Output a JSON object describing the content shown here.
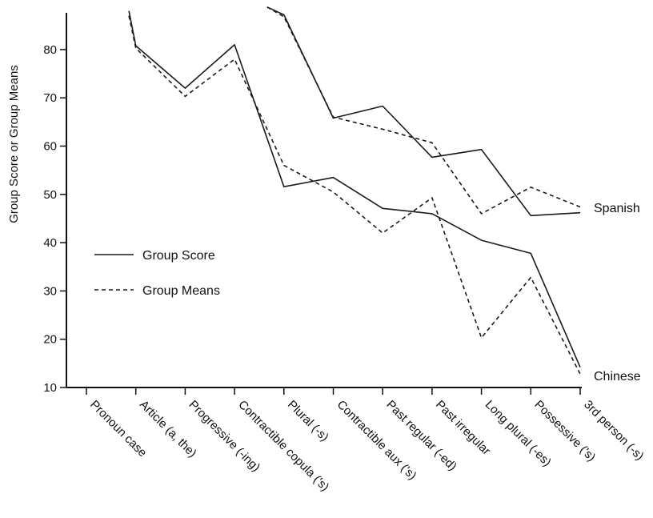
{
  "chart_data": {
    "type": "line",
    "ylabel": "Group Score or Group Means",
    "ylim": [
      10,
      88
    ],
    "yticks": [
      10,
      20,
      30,
      40,
      50,
      60,
      70,
      80
    ],
    "categories": [
      "Pronoun case",
      "Article (a, the)",
      "Progressive (-ing)",
      "Contractible copula ('s)",
      "Plural (-s)",
      "Contractible aux ('s)",
      "Past regular (-ed)",
      "Past irregular",
      "Long plural (-es)",
      "Possessive ('s)",
      "3rd person (-s)"
    ],
    "legend": [
      {
        "label": "Group Score",
        "style": "solid"
      },
      {
        "label": "Group Means",
        "style": "dashed"
      }
    ],
    "groups": [
      {
        "name": "Spanish",
        "series": [
          {
            "style": "solid",
            "values": [
              null,
              null,
              null,
              null,
              87.2,
              65.8,
              68.3,
              57.7,
              59.3,
              45.6,
              46.2
            ]
          },
          {
            "style": "dashed",
            "values": [
              null,
              null,
              null,
              null,
              86.8,
              66.0,
              63.5,
              60.7,
              46.0,
              51.5,
              47.4
            ]
          }
        ]
      },
      {
        "name": "Chinese",
        "series": [
          {
            "style": "solid",
            "values": [
              null,
              80.8,
              72.0,
              81.0,
              51.6,
              53.5,
              47.1,
              46.0,
              40.5,
              37.8,
              14.2
            ]
          },
          {
            "style": "dashed",
            "values": [
              null,
              80.3,
              70.3,
              78.0,
              56.0,
              50.5,
              42.0,
              49.3,
              20.3,
              32.8,
              12.8
            ]
          }
        ]
      }
    ],
    "segments_above_axis": [
      {
        "group": "Spanish",
        "style": "solid",
        "from_x": 3.66,
        "from_y": 88.8
      },
      {
        "group": "Spanish",
        "style": "dashed",
        "from_x": 3.66,
        "from_y": 88.8
      },
      {
        "group": "Chinese",
        "style": "solid",
        "from_x": 0.86,
        "from_y": 88.0
      },
      {
        "group": "Chinese",
        "style": "dashed",
        "from_x": 0.86,
        "from_y": 87.0
      }
    ],
    "colors": {
      "line": "#1a1a1a",
      "axis": "#111111"
    }
  }
}
